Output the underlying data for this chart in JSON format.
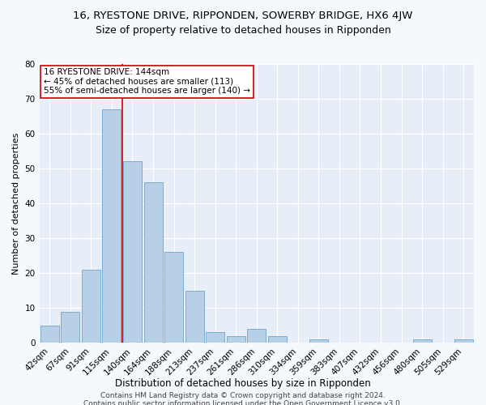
{
  "title1": "16, RYESTONE DRIVE, RIPPONDEN, SOWERBY BRIDGE, HX6 4JW",
  "title2": "Size of property relative to detached houses in Ripponden",
  "xlabel": "Distribution of detached houses by size in Ripponden",
  "ylabel": "Number of detached properties",
  "bar_labels": [
    "42sqm",
    "67sqm",
    "91sqm",
    "115sqm",
    "140sqm",
    "164sqm",
    "188sqm",
    "213sqm",
    "237sqm",
    "261sqm",
    "286sqm",
    "310sqm",
    "334sqm",
    "359sqm",
    "383sqm",
    "407sqm",
    "432sqm",
    "456sqm",
    "480sqm",
    "505sqm",
    "529sqm"
  ],
  "bar_values": [
    5,
    9,
    21,
    67,
    52,
    46,
    26,
    15,
    3,
    2,
    4,
    2,
    0,
    1,
    0,
    0,
    0,
    0,
    1,
    0,
    1
  ],
  "bar_color": "#b8cfe8",
  "bar_edge_color": "#7aadd4",
  "ylim": [
    0,
    80
  ],
  "yticks": [
    0,
    10,
    20,
    30,
    40,
    50,
    60,
    70,
    80
  ],
  "property_label": "16 RYESTONE DRIVE: 144sqm",
  "annotation_line1": "← 45% of detached houses are smaller (113)",
  "annotation_line2": "55% of semi-detached houses are larger (140) →",
  "vline_color": "#cc0000",
  "annotation_box_facecolor": "#ffffff",
  "annotation_box_edgecolor": "#cc0000",
  "footer1": "Contains HM Land Registry data © Crown copyright and database right 2024.",
  "footer2": "Contains public sector information licensed under the Open Government Licence v3.0.",
  "fig_facecolor": "#f5f8fd",
  "ax_facecolor": "#e8eef8",
  "grid_color": "#ffffff",
  "title1_fontsize": 9.5,
  "title2_fontsize": 9,
  "xlabel_fontsize": 8.5,
  "ylabel_fontsize": 8,
  "tick_fontsize": 7.5,
  "footer_fontsize": 6.5,
  "annot_fontsize": 7.5
}
